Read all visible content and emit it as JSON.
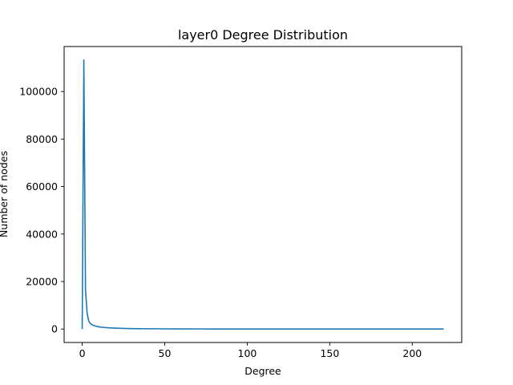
{
  "chart_data": {
    "type": "line",
    "title": "layer0 Degree Distribution",
    "xlabel": "Degree",
    "ylabel": "Number of nodes",
    "xlim": [
      -10.95,
      229.95
    ],
    "ylim": [
      -5665,
      118965
    ],
    "xticks": [
      0,
      50,
      100,
      150,
      200
    ],
    "yticks": [
      0,
      20000,
      40000,
      60000,
      80000,
      100000
    ],
    "grid": false,
    "series": [
      {
        "color": "#1f77b4",
        "x": [
          0,
          1,
          2,
          3,
          4,
          5,
          6,
          7,
          8,
          10,
          12,
          15,
          20,
          25,
          30,
          40,
          50,
          60,
          80,
          100,
          130,
          160,
          190,
          219
        ],
        "y": [
          0,
          113300,
          16500,
          6500,
          3300,
          2300,
          1800,
          1500,
          1250,
          950,
          750,
          550,
          380,
          270,
          200,
          120,
          80,
          55,
          30,
          18,
          10,
          6,
          3,
          1
        ]
      }
    ]
  }
}
